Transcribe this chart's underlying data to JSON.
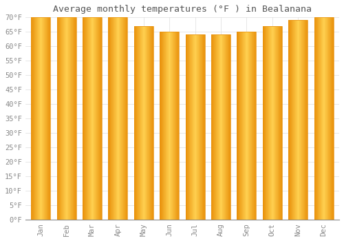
{
  "title": "Average monthly temperatures (°F ) in Bealanana",
  "months": [
    "Jan",
    "Feb",
    "Mar",
    "Apr",
    "May",
    "Jun",
    "Jul",
    "Aug",
    "Sep",
    "Oct",
    "Nov",
    "Dec"
  ],
  "values": [
    70,
    70,
    70,
    70,
    67,
    65,
    64,
    64,
    65,
    67,
    69,
    70
  ],
  "ylim": [
    0,
    70
  ],
  "yticks": [
    0,
    5,
    10,
    15,
    20,
    25,
    30,
    35,
    40,
    45,
    50,
    55,
    60,
    65,
    70
  ],
  "bar_color_center": "#FFD050",
  "bar_color_edge": "#E8900A",
  "background_color": "#FFFFFF",
  "grid_color": "#DDDDDD",
  "title_fontsize": 9.5,
  "tick_fontsize": 7.5,
  "tick_color": "#888888",
  "bar_width": 0.75
}
